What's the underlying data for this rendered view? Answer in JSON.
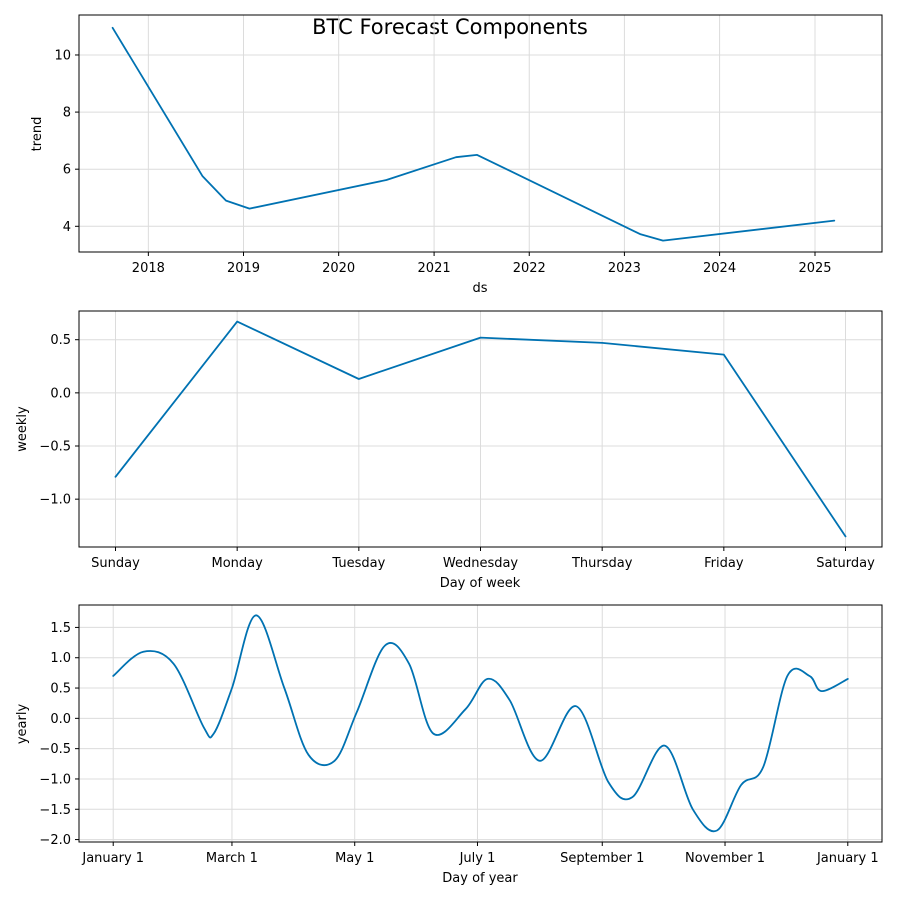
{
  "figure": {
    "title": "BTC Forecast Components",
    "line_color": "#0072B2"
  },
  "chart_data": [
    {
      "type": "line",
      "xlabel": "ds",
      "ylabel": "trend",
      "x_type": "date",
      "xlim": [
        "2017-04-10",
        "2025-09-15"
      ],
      "ylim": [
        3.1,
        11.4
      ],
      "xticks": [
        {
          "label": "2018",
          "value": "2018-01-01"
        },
        {
          "label": "2019",
          "value": "2019-01-01"
        },
        {
          "label": "2020",
          "value": "2020-01-01"
        },
        {
          "label": "2021",
          "value": "2021-01-01"
        },
        {
          "label": "2022",
          "value": "2022-01-01"
        },
        {
          "label": "2023",
          "value": "2023-01-01"
        },
        {
          "label": "2024",
          "value": "2024-01-01"
        },
        {
          "label": "2025",
          "value": "2025-01-01"
        }
      ],
      "yticks": [
        4,
        6,
        8,
        10
      ],
      "grid": true,
      "series": [
        {
          "x": [
            "2017-08-17",
            "2018-07-28",
            "2018-10-26",
            "2019-01-24",
            "2020-07-02",
            "2021-03-26",
            "2021-06-15",
            "2023-03-04",
            "2023-05-29",
            "2025-03-16"
          ],
          "y": [
            10.95,
            5.75,
            4.9,
            4.62,
            5.62,
            6.42,
            6.5,
            3.72,
            3.5,
            4.2
          ]
        }
      ]
    },
    {
      "type": "line",
      "xlabel": "Day of week",
      "ylabel": "weekly",
      "x_type": "category",
      "categories": [
        "Sunday",
        "Monday",
        "Tuesday",
        "Wednesday",
        "Thursday",
        "Friday",
        "Saturday"
      ],
      "xlim": [
        -0.3,
        6.3
      ],
      "ylim": [
        -1.45,
        0.77
      ],
      "yticks": [
        0.5,
        0.0,
        -0.5,
        -1.0
      ],
      "ytick_labels": [
        "0.5",
        "0.0",
        "−0.5",
        "−1.0"
      ],
      "grid": true,
      "series": [
        {
          "values": [
            -0.79,
            0.67,
            0.13,
            0.52,
            0.47,
            0.36,
            -1.35
          ]
        }
      ]
    },
    {
      "type": "line",
      "xlabel": "Day of year",
      "ylabel": "yearly",
      "x_type": "day-of-year",
      "xlim": [
        -17,
        382
      ],
      "ylim": [
        -2.04,
        1.87
      ],
      "xticks": [
        {
          "label": "January 1",
          "value": 0
        },
        {
          "label": "March 1",
          "value": 59
        },
        {
          "label": "May 1",
          "value": 120
        },
        {
          "label": "July 1",
          "value": 181
        },
        {
          "label": "September 1",
          "value": 243
        },
        {
          "label": "November 1",
          "value": 304
        },
        {
          "label": "January 1",
          "value": 365
        }
      ],
      "yticks": [
        1.5,
        1.0,
        0.5,
        0.0,
        -0.5,
        -1.0,
        -1.5,
        -2.0
      ],
      "ytick_labels": [
        "1.5",
        "1.0",
        "0.5",
        "0.0",
        "−0.5",
        "−1.0",
        "−1.5",
        "−2.0"
      ],
      "grid": true,
      "series": [
        {
          "x": [
            0,
            15,
            30,
            45,
            50,
            59,
            71,
            85,
            97,
            110,
            121,
            135,
            147,
            159,
            175,
            186,
            197,
            212,
            230,
            246,
            258,
            274,
            288,
            300,
            312,
            323,
            335,
            346,
            352,
            365
          ],
          "y": [
            0.7,
            1.1,
            0.9,
            -0.15,
            -0.25,
            0.5,
            1.7,
            0.5,
            -0.6,
            -0.7,
            0.1,
            1.2,
            0.9,
            -0.25,
            0.15,
            0.65,
            0.3,
            -0.7,
            0.2,
            -1.05,
            -1.3,
            -0.45,
            -1.5,
            -1.85,
            -1.1,
            -0.8,
            0.7,
            0.7,
            0.45,
            0.65
          ]
        }
      ]
    }
  ]
}
